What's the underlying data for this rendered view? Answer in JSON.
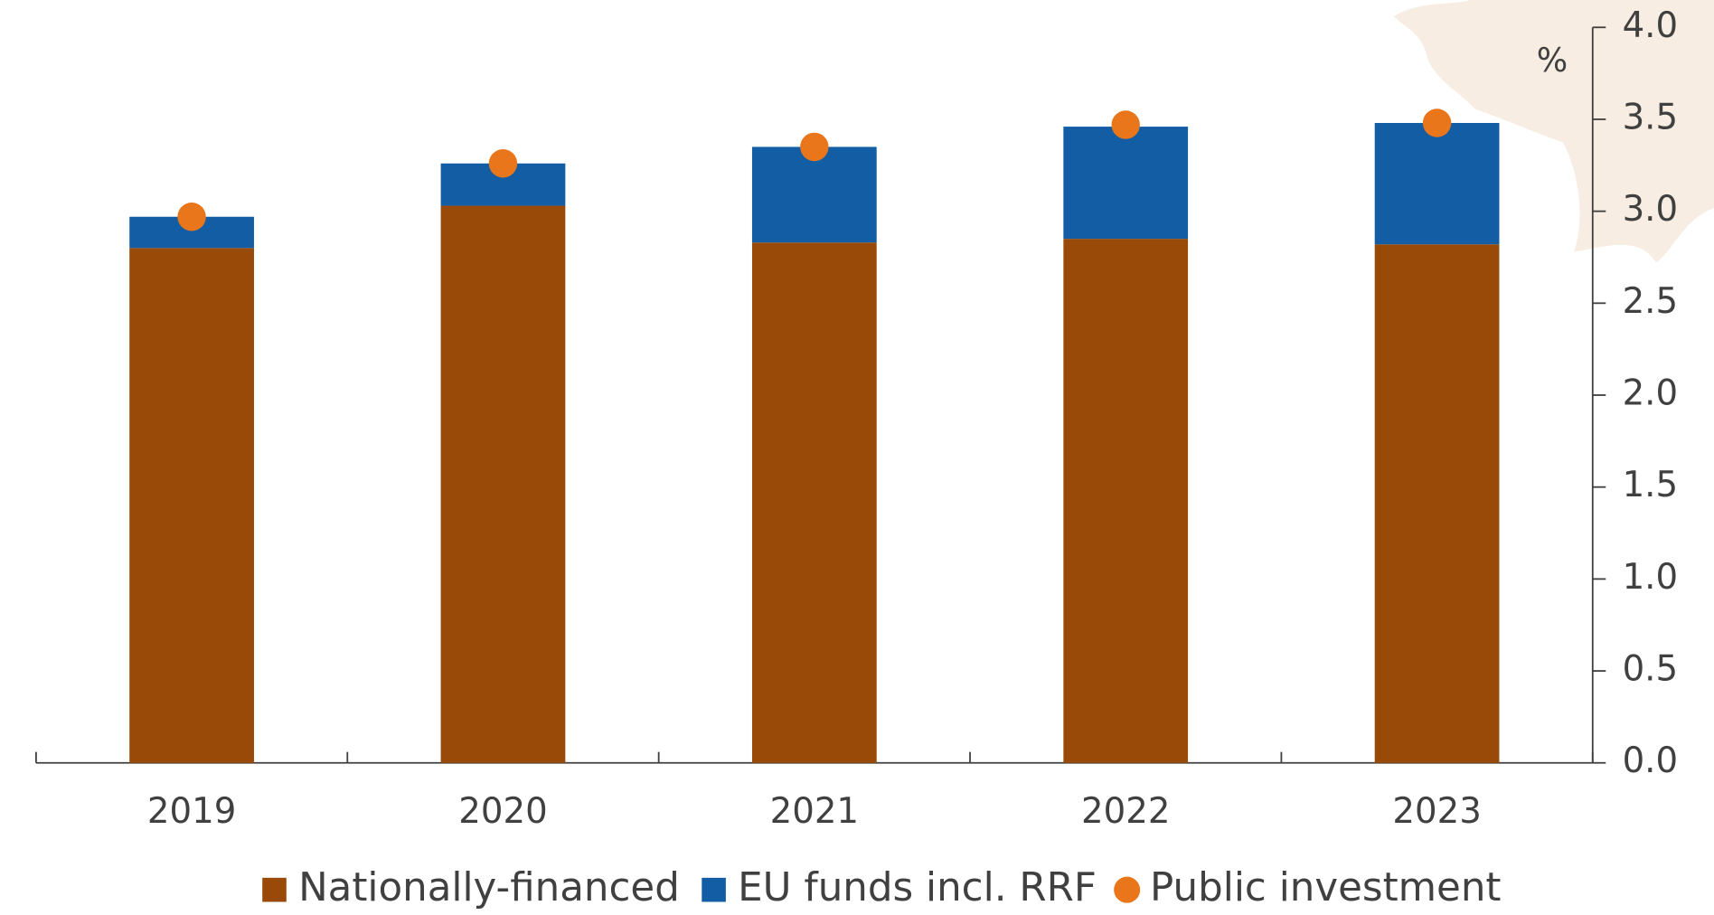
{
  "chart_data": {
    "type": "bar",
    "stacked": true,
    "unit_label": "%",
    "categories": [
      "2019",
      "2020",
      "2021",
      "2022",
      "2023"
    ],
    "series": [
      {
        "name": "Nationally-financed",
        "type": "bar",
        "color": "#994a08",
        "values": [
          2.8,
          3.03,
          2.83,
          2.85,
          2.82
        ]
      },
      {
        "name": "EU funds incl. RRF",
        "type": "bar",
        "color": "#125da3",
        "values": [
          0.17,
          0.23,
          0.52,
          0.61,
          0.66
        ]
      },
      {
        "name": "Public investment",
        "type": "dot",
        "color": "#e9761b",
        "values": [
          2.97,
          3.26,
          3.35,
          3.47,
          3.48
        ]
      }
    ],
    "ylim": [
      0,
      4
    ],
    "yticks": [
      {
        "value": 0,
        "label": "0.0"
      },
      0.5,
      {
        "value": 1,
        "label": "1.0"
      },
      1.5,
      {
        "value": 2,
        "label": "2.0"
      },
      2.5,
      {
        "value": 3,
        "label": "3.0"
      },
      3.5,
      {
        "value": 4,
        "label": "4.0"
      }
    ],
    "y_axis_side": "right",
    "legend_position": "bottom"
  }
}
